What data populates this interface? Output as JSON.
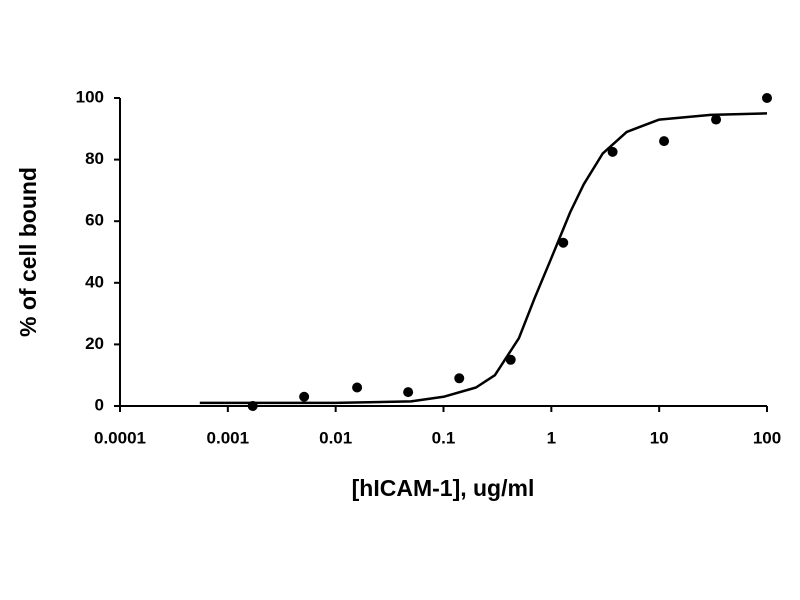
{
  "chart_data": {
    "type": "scatter",
    "x_label": "[hICAM-1], ug/ml",
    "y_label": "% of cell bound",
    "xscale": "log",
    "xlim": [
      0.0001,
      100
    ],
    "xticks": [
      0.0001,
      0.001,
      0.01,
      0.1,
      1,
      10,
      100
    ],
    "ylim": [
      0,
      100
    ],
    "yticks": [
      0,
      20,
      40,
      60,
      80,
      100
    ],
    "grid": false,
    "series": [
      {
        "mode": "markers",
        "color": "#000000",
        "x": [
          0.0017,
          0.0051,
          0.0158,
          0.047,
          0.14,
          0.42,
          1.29,
          3.7,
          11.1,
          33.7,
          100
        ],
        "values": [
          0,
          3,
          6,
          4.5,
          9,
          15,
          53,
          82.5,
          86,
          93,
          100
        ]
      },
      {
        "mode": "line",
        "color": "#000000",
        "x": [
          0.00055,
          0.001,
          0.01,
          0.05,
          0.1,
          0.2,
          0.3,
          0.5,
          0.7,
          1,
          1.5,
          2,
          3,
          5,
          10,
          30,
          100
        ],
        "values": [
          1,
          1,
          1,
          1.5,
          3,
          6,
          10,
          22,
          35,
          48,
          63,
          72,
          82,
          89,
          93,
          94.5,
          95
        ]
      }
    ]
  }
}
